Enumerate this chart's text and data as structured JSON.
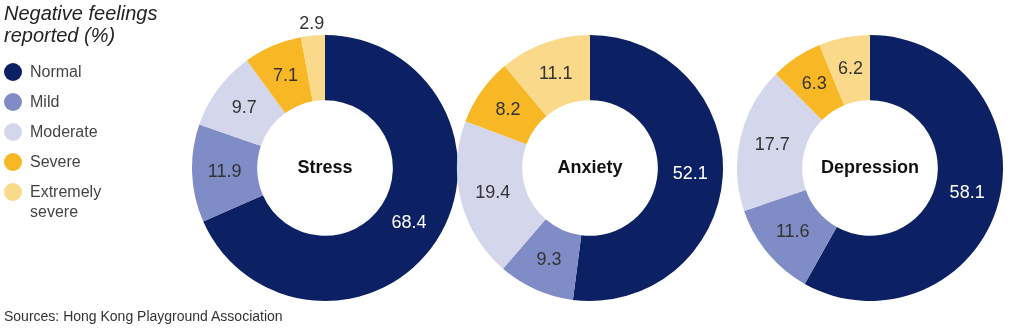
{
  "chart_data": [
    {
      "type": "donut",
      "title": "Stress",
      "legend_title": "Negative feelings reported (%)",
      "legend": "left",
      "categories": [
        "Normal",
        "Mild",
        "Moderate",
        "Severe",
        "Extremely severe"
      ],
      "values": [
        68.4,
        11.9,
        9.7,
        7.1,
        2.9
      ],
      "colors": [
        "#0b2163",
        "#7f8cc6",
        "#d4d6ec",
        "#f8b724",
        "#fbd98a"
      ],
      "data_labels": true,
      "annotations": [
        "Sources: Hong Kong Playground Association"
      ]
    },
    {
      "type": "donut",
      "title": "Anxiety",
      "categories": [
        null,
        null,
        null,
        null,
        null
      ],
      "values": [
        52.1,
        9.3,
        19.4,
        8.2,
        11.1
      ],
      "colors": [
        "#0b2163",
        "#7f8cc6",
        "#d4d6ec",
        "#f8b724",
        "#fbd98a"
      ],
      "data_labels": true
    },
    {
      "type": "donut",
      "title": "Depression",
      "categories": [
        null,
        null,
        null,
        null,
        null
      ],
      "values": [
        58.1,
        11.6,
        17.7,
        6.3,
        6.2
      ],
      "colors": [
        "#0b2163",
        "#7f8cc6",
        "#d4d6ec",
        "#f8b724",
        "#fbd98a"
      ],
      "data_labels": true
    }
  ]
}
